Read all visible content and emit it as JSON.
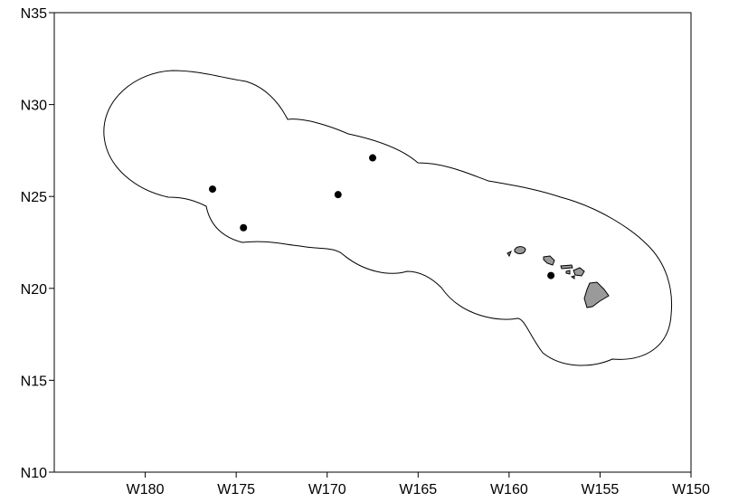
{
  "map": {
    "x_axis": {
      "range": [
        "W185",
        "W150"
      ],
      "tick_labels": [
        "W180",
        "W175",
        "W170",
        "W165",
        "W160",
        "W155",
        "W150"
      ],
      "tick_values": [
        -180,
        -175,
        -170,
        -165,
        -160,
        -155,
        -150
      ]
    },
    "y_axis": {
      "range": [
        "N10",
        "N35"
      ],
      "tick_labels": [
        "N35",
        "N30",
        "N25",
        "N20",
        "N15",
        "N10"
      ],
      "tick_values": [
        35,
        30,
        25,
        20,
        15,
        10
      ]
    },
    "points": [
      {
        "lon": -176.3,
        "lat": 25.4
      },
      {
        "lon": -174.6,
        "lat": 23.3
      },
      {
        "lon": -169.4,
        "lat": 25.1
      },
      {
        "lon": -167.5,
        "lat": 27.1
      },
      {
        "lon": -157.7,
        "lat": 20.7
      }
    ],
    "colors": {
      "boundary": "#000000",
      "island_fill": "#9a9a9a",
      "point": "#000000",
      "frame": "#000000",
      "background": "#ffffff"
    },
    "features": {
      "boundary": "buffer-zone-outline",
      "islands": [
        "main-hawaiian-islands"
      ]
    }
  }
}
